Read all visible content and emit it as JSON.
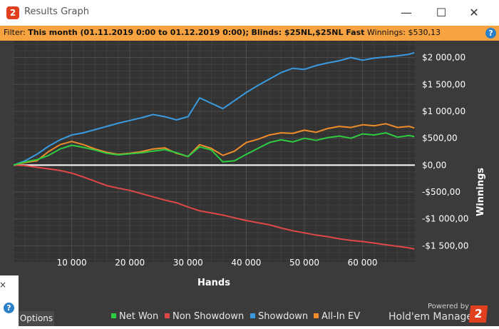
{
  "window": {
    "title": "Results Graph",
    "app_icon_text": "2",
    "minimize_glyph": "—",
    "maximize_glyph": "☐",
    "close_glyph": "✕"
  },
  "filter": {
    "label": "Filter:",
    "period": "This month (01.11.2019 0:00 to 01.12.2019 0:00);",
    "blinds": "Blinds: $25NL,$25NL Fast",
    "winnings": "Winnings: $530,13",
    "help": "?"
  },
  "left_panel": {
    "close_glyph": "×",
    "help": "?"
  },
  "options_label": "Options",
  "branding": {
    "powered": "Powered by",
    "name": "Hold'em Manager",
    "logo_text": "2"
  },
  "chart_data": {
    "type": "line",
    "xlabel": "Hands",
    "ylabel": "Winnings",
    "xlim": [
      0,
      69000
    ],
    "ylim": [
      -1800,
      2300
    ],
    "x_ticks": [
      10000,
      20000,
      30000,
      40000,
      50000,
      60000
    ],
    "x_tick_labels": [
      "10 000",
      "20 000",
      "30 000",
      "40 000",
      "50 000",
      "60 000"
    ],
    "y_ticks": [
      2000,
      1500,
      1000,
      500,
      0,
      -500,
      -1000,
      -1500
    ],
    "y_tick_labels": [
      "$2 000,00",
      "$1 500,00",
      "$1 000,00",
      "$500,00",
      "$0,00",
      "-$500,00",
      "-$1 000,00",
      "-$1 500,00"
    ],
    "grid": true,
    "legend_position": "bottom",
    "series": [
      {
        "name": "Net Won",
        "color": "#2ecc40",
        "x": [
          0,
          2000,
          4000,
          6000,
          8000,
          10000,
          12000,
          14000,
          16000,
          18000,
          20000,
          22000,
          24000,
          26000,
          28000,
          30000,
          32000,
          34000,
          36000,
          38000,
          40000,
          42000,
          44000,
          46000,
          48000,
          50000,
          52000,
          54000,
          56000,
          58000,
          60000,
          62000,
          64000,
          66000,
          68000,
          68900
        ],
        "y": [
          0,
          60,
          100,
          180,
          300,
          370,
          330,
          280,
          220,
          190,
          210,
          230,
          260,
          290,
          230,
          160,
          340,
          280,
          60,
          80,
          200,
          310,
          420,
          470,
          430,
          500,
          460,
          510,
          540,
          500,
          580,
          560,
          600,
          520,
          550,
          530
        ]
      },
      {
        "name": "Non Showdown",
        "color": "#e04848",
        "x": [
          0,
          2000,
          4000,
          6000,
          8000,
          10000,
          12000,
          14000,
          16000,
          18000,
          20000,
          22000,
          24000,
          26000,
          28000,
          30000,
          32000,
          34000,
          36000,
          38000,
          40000,
          42000,
          44000,
          46000,
          48000,
          50000,
          52000,
          54000,
          56000,
          58000,
          60000,
          62000,
          64000,
          66000,
          68000,
          68900
        ],
        "y": [
          0,
          -10,
          -40,
          -70,
          -100,
          -150,
          -220,
          -300,
          -380,
          -430,
          -470,
          -530,
          -590,
          -650,
          -700,
          -780,
          -850,
          -890,
          -930,
          -980,
          -1030,
          -1070,
          -1110,
          -1170,
          -1220,
          -1260,
          -1300,
          -1330,
          -1370,
          -1400,
          -1420,
          -1450,
          -1480,
          -1510,
          -1540,
          -1560
        ]
      },
      {
        "name": "Showdown",
        "color": "#3a9ae0",
        "x": [
          0,
          2000,
          4000,
          6000,
          8000,
          10000,
          12000,
          14000,
          16000,
          18000,
          20000,
          22000,
          24000,
          26000,
          28000,
          30000,
          32000,
          34000,
          36000,
          38000,
          40000,
          42000,
          44000,
          46000,
          48000,
          50000,
          52000,
          54000,
          56000,
          58000,
          60000,
          62000,
          64000,
          66000,
          68000,
          68900
        ],
        "y": [
          0,
          80,
          200,
          350,
          470,
          560,
          600,
          660,
          720,
          780,
          830,
          880,
          940,
          900,
          840,
          900,
          1250,
          1150,
          1050,
          1200,
          1350,
          1480,
          1600,
          1720,
          1800,
          1780,
          1850,
          1900,
          1940,
          2000,
          1950,
          1990,
          2010,
          2030,
          2060,
          2090
        ]
      },
      {
        "name": "All-In EV",
        "color": "#f08c2a",
        "x": [
          0,
          2000,
          4000,
          6000,
          8000,
          10000,
          12000,
          14000,
          16000,
          18000,
          20000,
          22000,
          24000,
          26000,
          28000,
          30000,
          32000,
          34000,
          36000,
          38000,
          40000,
          42000,
          44000,
          46000,
          48000,
          50000,
          52000,
          54000,
          56000,
          58000,
          60000,
          62000,
          64000,
          66000,
          68000,
          68900
        ],
        "y": [
          0,
          50,
          80,
          250,
          380,
          440,
          380,
          300,
          240,
          200,
          220,
          250,
          300,
          320,
          220,
          160,
          380,
          310,
          180,
          260,
          420,
          480,
          560,
          600,
          590,
          650,
          610,
          680,
          720,
          700,
          750,
          730,
          770,
          700,
          720,
          690
        ]
      }
    ]
  }
}
